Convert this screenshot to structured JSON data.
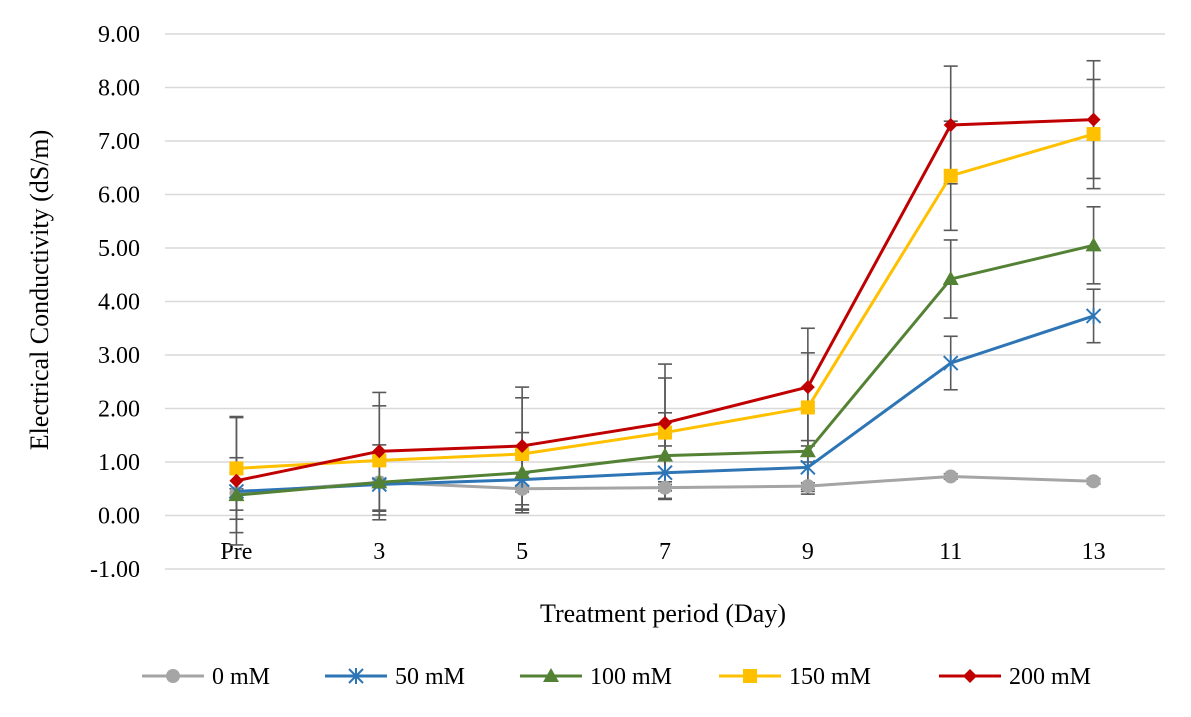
{
  "chart_data": {
    "type": "line",
    "title": "",
    "xlabel": "Treatment period (Day)",
    "ylabel": "Electrical Conductivity (dS/m)",
    "categories": [
      "Pre",
      "3",
      "5",
      "7",
      "9",
      "11",
      "13"
    ],
    "ylim": [
      -1.0,
      9.0
    ],
    "yticks": [
      "-1.00",
      "0.00",
      "1.00",
      "2.00",
      "3.00",
      "4.00",
      "5.00",
      "6.00",
      "7.00",
      "8.00",
      "9.00"
    ],
    "grid": "horizontal",
    "legend_position": "bottom",
    "error_bars": true,
    "series": [
      {
        "name": "0 mM",
        "color": "#A5A5A5",
        "marker": "circle",
        "values": [
          0.42,
          0.62,
          0.5,
          0.52,
          0.55,
          0.73,
          0.64
        ],
        "errors": [
          0.08,
          0.06,
          0.06,
          0.06,
          0.06,
          0.05,
          0.05
        ]
      },
      {
        "name": "50 mM",
        "color": "#2E75B6",
        "marker": "star",
        "values": [
          0.45,
          0.58,
          0.67,
          0.8,
          0.9,
          2.85,
          3.73
        ],
        "errors": [
          0.35,
          0.5,
          0.55,
          0.5,
          0.5,
          0.5,
          0.5
        ]
      },
      {
        "name": "100 mM",
        "color": "#548235",
        "marker": "triangle",
        "values": [
          0.38,
          0.62,
          0.8,
          1.12,
          1.2,
          4.42,
          5.05
        ],
        "errors": [
          0.7,
          0.7,
          0.75,
          0.8,
          0.75,
          0.73,
          0.72
        ]
      },
      {
        "name": "150 mM",
        "color": "#FFC000",
        "marker": "square",
        "values": [
          0.88,
          1.03,
          1.15,
          1.55,
          2.02,
          6.35,
          7.13
        ],
        "errors": [
          0.95,
          1.02,
          1.05,
          1.02,
          1.02,
          1.02,
          1.02
        ]
      },
      {
        "name": "200 mM",
        "color": "#C00000",
        "marker": "diamond",
        "values": [
          0.65,
          1.2,
          1.3,
          1.73,
          2.4,
          7.3,
          7.4
        ],
        "errors": [
          1.2,
          1.1,
          1.1,
          1.1,
          1.1,
          1.1,
          1.1
        ]
      }
    ]
  }
}
